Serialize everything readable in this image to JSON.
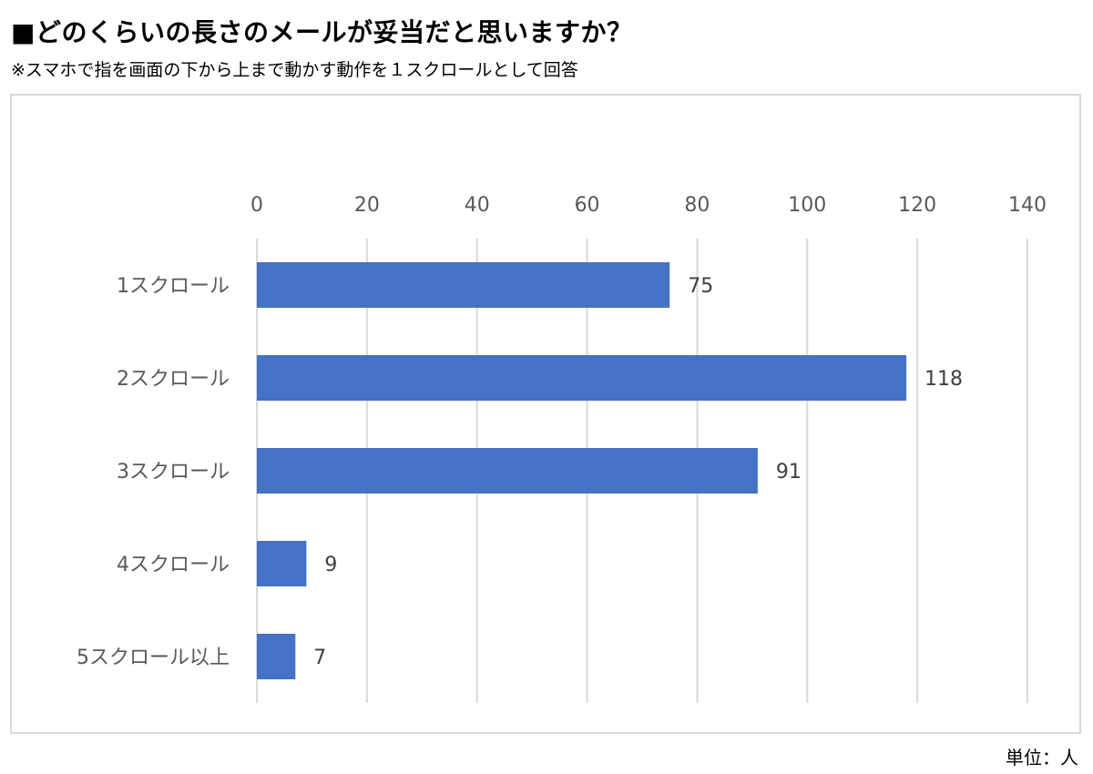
{
  "title": "■どのくらいの長さのメールが妥当だと思いますか？",
  "subtitle": "※スマホで指を画面の下から上まで動かす動作を１スクロールとして回答",
  "unit_label": "単位：人",
  "colors": {
    "bar": "#4472c4",
    "grid": "#d9d9d9",
    "tick_text": "#595959",
    "border": "#d9d9d9"
  },
  "chart_data": {
    "type": "bar",
    "orientation": "horizontal",
    "categories": [
      "1スクロール",
      "2スクロール",
      "3スクロール",
      "4スクロール",
      "5スクロール以上"
    ],
    "values": [
      75,
      118,
      91,
      9,
      7
    ],
    "data_labels": [
      "75",
      "118",
      "91",
      "9",
      "7"
    ],
    "xlim": [
      0,
      140
    ],
    "x_ticks": [
      0,
      20,
      40,
      60,
      80,
      100,
      120,
      140
    ],
    "x_axis_position": "top",
    "grid": true,
    "legend": false,
    "title": "■どのくらいの長さのメールが妥当だと思いますか？",
    "xlabel": "",
    "ylabel": ""
  }
}
